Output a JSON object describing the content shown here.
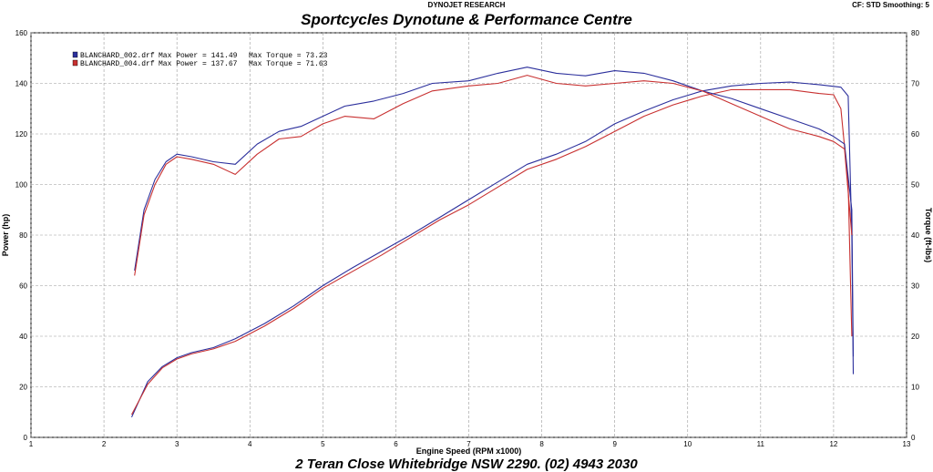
{
  "header": {
    "top_label": "DYNOJET RESEARCH",
    "settings": "CF: STD   Smoothing: 5",
    "title": "Sportcycles Dynotune & Performance Centre"
  },
  "footer": {
    "address": "2 Teran Close Whitebridge NSW 2290.  (02) 4943 2030"
  },
  "chart_data": {
    "type": "line",
    "xlabel": "Engine Speed (RPM x1000)",
    "ylabel": "Power (hp)",
    "y2label": "Torque (ft-lbs)",
    "xlim": [
      1,
      13
    ],
    "ylim": [
      0,
      160
    ],
    "y2lim": [
      0,
      80
    ],
    "x_ticks": [
      1,
      2,
      3,
      4,
      5,
      6,
      7,
      8,
      9,
      10,
      11,
      12,
      13
    ],
    "y_ticks": [
      0,
      20,
      40,
      60,
      80,
      100,
      120,
      140,
      160
    ],
    "y2_ticks": [
      0,
      10,
      20,
      30,
      40,
      50,
      60,
      70,
      80
    ],
    "grid": true,
    "legend": [
      {
        "file": "BLANCHARD_002.drf",
        "power_label": "Max Power = 141.49",
        "torque_label": "Max Torque = 73.23",
        "color": "#2b2f9c"
      },
      {
        "file": "BLANCHARD_004.drf",
        "power_label": "Max Power = 137.67",
        "torque_label": "Max Torque = 71.63",
        "color": "#c83030"
      }
    ],
    "series": [
      {
        "name": "BLANCHARD_002.drf",
        "kind": "power",
        "axis": "left",
        "color": "#2b2f9c",
        "x": [
          2.38,
          2.6,
          2.8,
          3.0,
          3.2,
          3.5,
          3.8,
          4.2,
          4.6,
          5.0,
          5.4,
          5.8,
          6.2,
          6.6,
          7.0,
          7.4,
          7.8,
          8.2,
          8.6,
          9.0,
          9.4,
          9.8,
          10.2,
          10.6,
          11.0,
          11.4,
          11.8,
          12.1,
          12.2,
          12.25,
          12.27
        ],
        "y": [
          8,
          22,
          28,
          31.5,
          33.5,
          35.5,
          39,
          45,
          52,
          60,
          67,
          73.5,
          80,
          87,
          94,
          101,
          108,
          112,
          117,
          124,
          129,
          133.5,
          137,
          139,
          140,
          140.5,
          139.5,
          138.5,
          135,
          80,
          25
        ]
      },
      {
        "name": "BLANCHARD_004.drf",
        "kind": "power",
        "axis": "left",
        "color": "#c83030",
        "x": [
          2.38,
          2.6,
          2.8,
          3.0,
          3.2,
          3.5,
          3.8,
          4.2,
          4.6,
          5.0,
          5.4,
          5.8,
          6.2,
          6.6,
          7.0,
          7.4,
          7.8,
          8.2,
          8.6,
          9.0,
          9.4,
          9.8,
          10.2,
          10.6,
          11.0,
          11.4,
          11.8,
          12.0,
          12.1,
          12.2,
          12.25
        ],
        "y": [
          9,
          21,
          27.5,
          31,
          33,
          35,
          38,
          44,
          51,
          59,
          65.5,
          72,
          79,
          86,
          92,
          99,
          106,
          110,
          115,
          121,
          127,
          131.5,
          135,
          137.5,
          137.5,
          137.5,
          136,
          135.5,
          130,
          100,
          40
        ]
      },
      {
        "name": "BLANCHARD_002.drf",
        "kind": "torque",
        "axis": "right",
        "color": "#2b2f9c",
        "x": [
          2.42,
          2.55,
          2.7,
          2.85,
          3.0,
          3.2,
          3.5,
          3.8,
          4.1,
          4.4,
          4.7,
          5.0,
          5.3,
          5.7,
          6.1,
          6.5,
          7.0,
          7.4,
          7.8,
          8.2,
          8.6,
          9.0,
          9.4,
          9.8,
          10.2,
          10.6,
          11.0,
          11.4,
          11.8,
          12.0,
          12.15,
          12.25,
          12.27
        ],
        "y": [
          33,
          45,
          51,
          54.5,
          56,
          55.5,
          54.5,
          54,
          58,
          60.5,
          61.5,
          63.5,
          65.5,
          66.5,
          68,
          70,
          70.5,
          72,
          73.2,
          72,
          71.5,
          72.5,
          72,
          70.5,
          68.5,
          67,
          65,
          63,
          61,
          59.5,
          58,
          45,
          16
        ]
      },
      {
        "name": "BLANCHARD_004.drf",
        "kind": "torque",
        "axis": "right",
        "color": "#c83030",
        "x": [
          2.42,
          2.55,
          2.7,
          2.85,
          3.0,
          3.2,
          3.5,
          3.8,
          4.1,
          4.4,
          4.7,
          5.0,
          5.3,
          5.7,
          6.1,
          6.5,
          7.0,
          7.4,
          7.8,
          8.2,
          8.6,
          9.0,
          9.4,
          9.8,
          10.2,
          10.6,
          11.0,
          11.4,
          11.8,
          12.0,
          12.15,
          12.25
        ],
        "y": [
          32,
          44,
          50,
          54,
          55.5,
          55,
          54,
          52,
          56,
          59,
          59.5,
          62,
          63.5,
          63,
          66,
          68.5,
          69.5,
          70,
          71.6,
          70,
          69.5,
          70,
          70.5,
          70,
          68.5,
          66,
          63.5,
          61,
          59.5,
          58.5,
          57,
          40
        ]
      }
    ]
  }
}
